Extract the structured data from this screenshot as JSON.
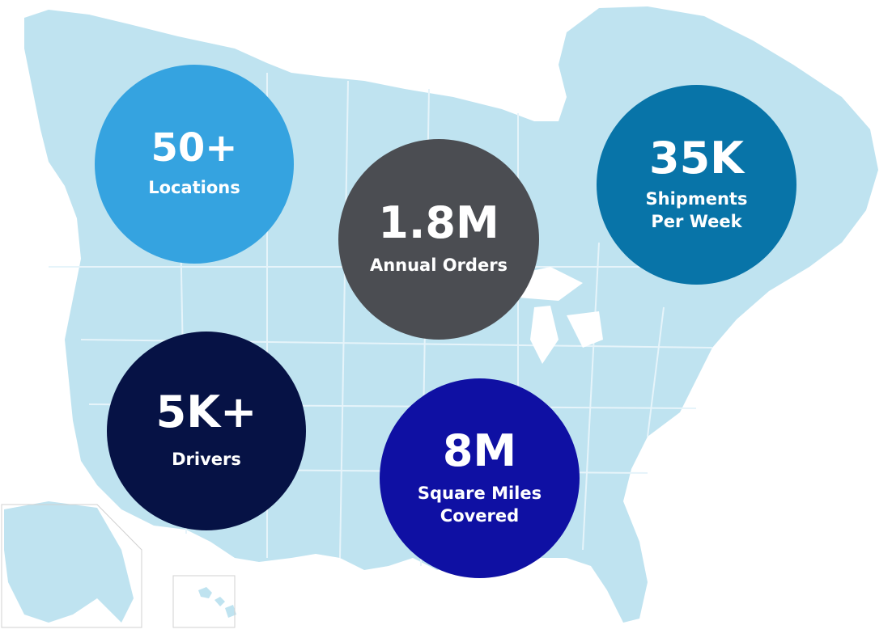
{
  "map": {
    "land_color": "#bfe3f0",
    "border_color": "#e6f4fa",
    "inset_border_color": "#d0d0d0"
  },
  "stats": [
    {
      "value": "50+",
      "label": "Locations",
      "color": "#35a3e0"
    },
    {
      "value": "1.8M",
      "label": "Annual Orders",
      "color": "#4b4d52"
    },
    {
      "value": "35K",
      "label": "Shipments\nPer Week",
      "color": "#0874a8"
    },
    {
      "value": "5K+",
      "label": "Drivers",
      "color": "#061245"
    },
    {
      "value": "8M",
      "label": "Square Miles\nCovered",
      "color": "#0f10a3"
    }
  ]
}
